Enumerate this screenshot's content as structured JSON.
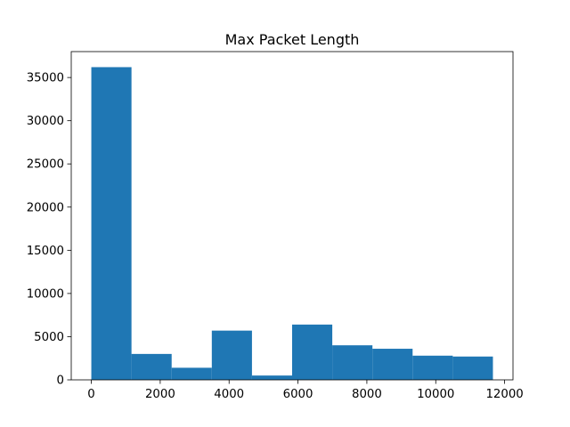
{
  "chart_data": {
    "type": "bar",
    "title": "Max Packet Length",
    "xlabel": "",
    "ylabel": "",
    "bin_edges": [
      0,
      1166,
      2332,
      3498,
      4664,
      5830,
      6996,
      8162,
      9328,
      10494,
      11660
    ],
    "values": [
      36200,
      3000,
      1400,
      5700,
      500,
      6400,
      4000,
      3600,
      2800,
      2700
    ],
    "xlim": [
      -583,
      12243
    ],
    "ylim": [
      0,
      38000
    ],
    "xticks": [
      0,
      2000,
      4000,
      6000,
      8000,
      10000,
      12000
    ],
    "yticks": [
      0,
      5000,
      10000,
      15000,
      20000,
      25000,
      30000,
      35000
    ],
    "bar_color": "#1f77b4",
    "grid": false,
    "legend": "none"
  }
}
